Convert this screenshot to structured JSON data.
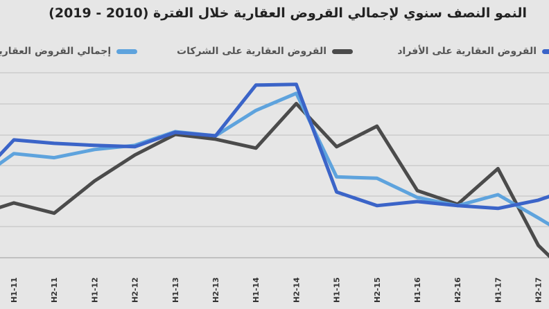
{
  "chart_data": {
    "type": "line",
    "title": "النمو النصف سنوي لإجمالي القروض العقارية خلال الفترة (2010 - 2019)",
    "categories": [
      "H1-11",
      "H2-11",
      "H1-12",
      "H2-12",
      "H1-13",
      "H2-13",
      "H1-14",
      "H2-14",
      "H1-15",
      "H2-15",
      "H1-16",
      "H2-16",
      "H1-17",
      "H2-17"
    ],
    "series": [
      {
        "name": "إجمالي القروض العقارية",
        "color": "#5ea3dd",
        "values": [
          5.2,
          4.6,
          5.8,
          6.4,
          8.4,
          7.8,
          11.5,
          14.0,
          1.8,
          1.6,
          -1.2,
          -2.4,
          -0.8,
          -4.2
        ],
        "start": 3.4,
        "end": -5.6
      },
      {
        "name": "القروض العقارية على الشركات",
        "color": "#4b4b4b",
        "values": [
          -2.0,
          -3.5,
          1.2,
          5.0,
          8.0,
          7.3,
          6.0,
          12.5,
          6.2,
          9.2,
          -0.2,
          -2.2,
          3.0,
          -8.2
        ],
        "start": -2.8,
        "end": -10.5
      },
      {
        "name": "القروض العقارية على الأفراد",
        "color": "#3b64c8",
        "values": [
          7.2,
          6.7,
          6.4,
          6.2,
          8.3,
          7.8,
          15.2,
          15.3,
          -0.4,
          -2.4,
          -1.8,
          -2.4,
          -2.8,
          -1.6
        ],
        "start": 4.5,
        "end": -0.8
      }
    ],
    "ylim": [
      -10,
      17
    ],
    "grid": true,
    "legend_position": "top"
  },
  "legend": {
    "total": "إجمالي القروض العقارية",
    "companies": "القروض العقارية على الشركات",
    "individuals": "القروض العقارية على الأفراد"
  }
}
